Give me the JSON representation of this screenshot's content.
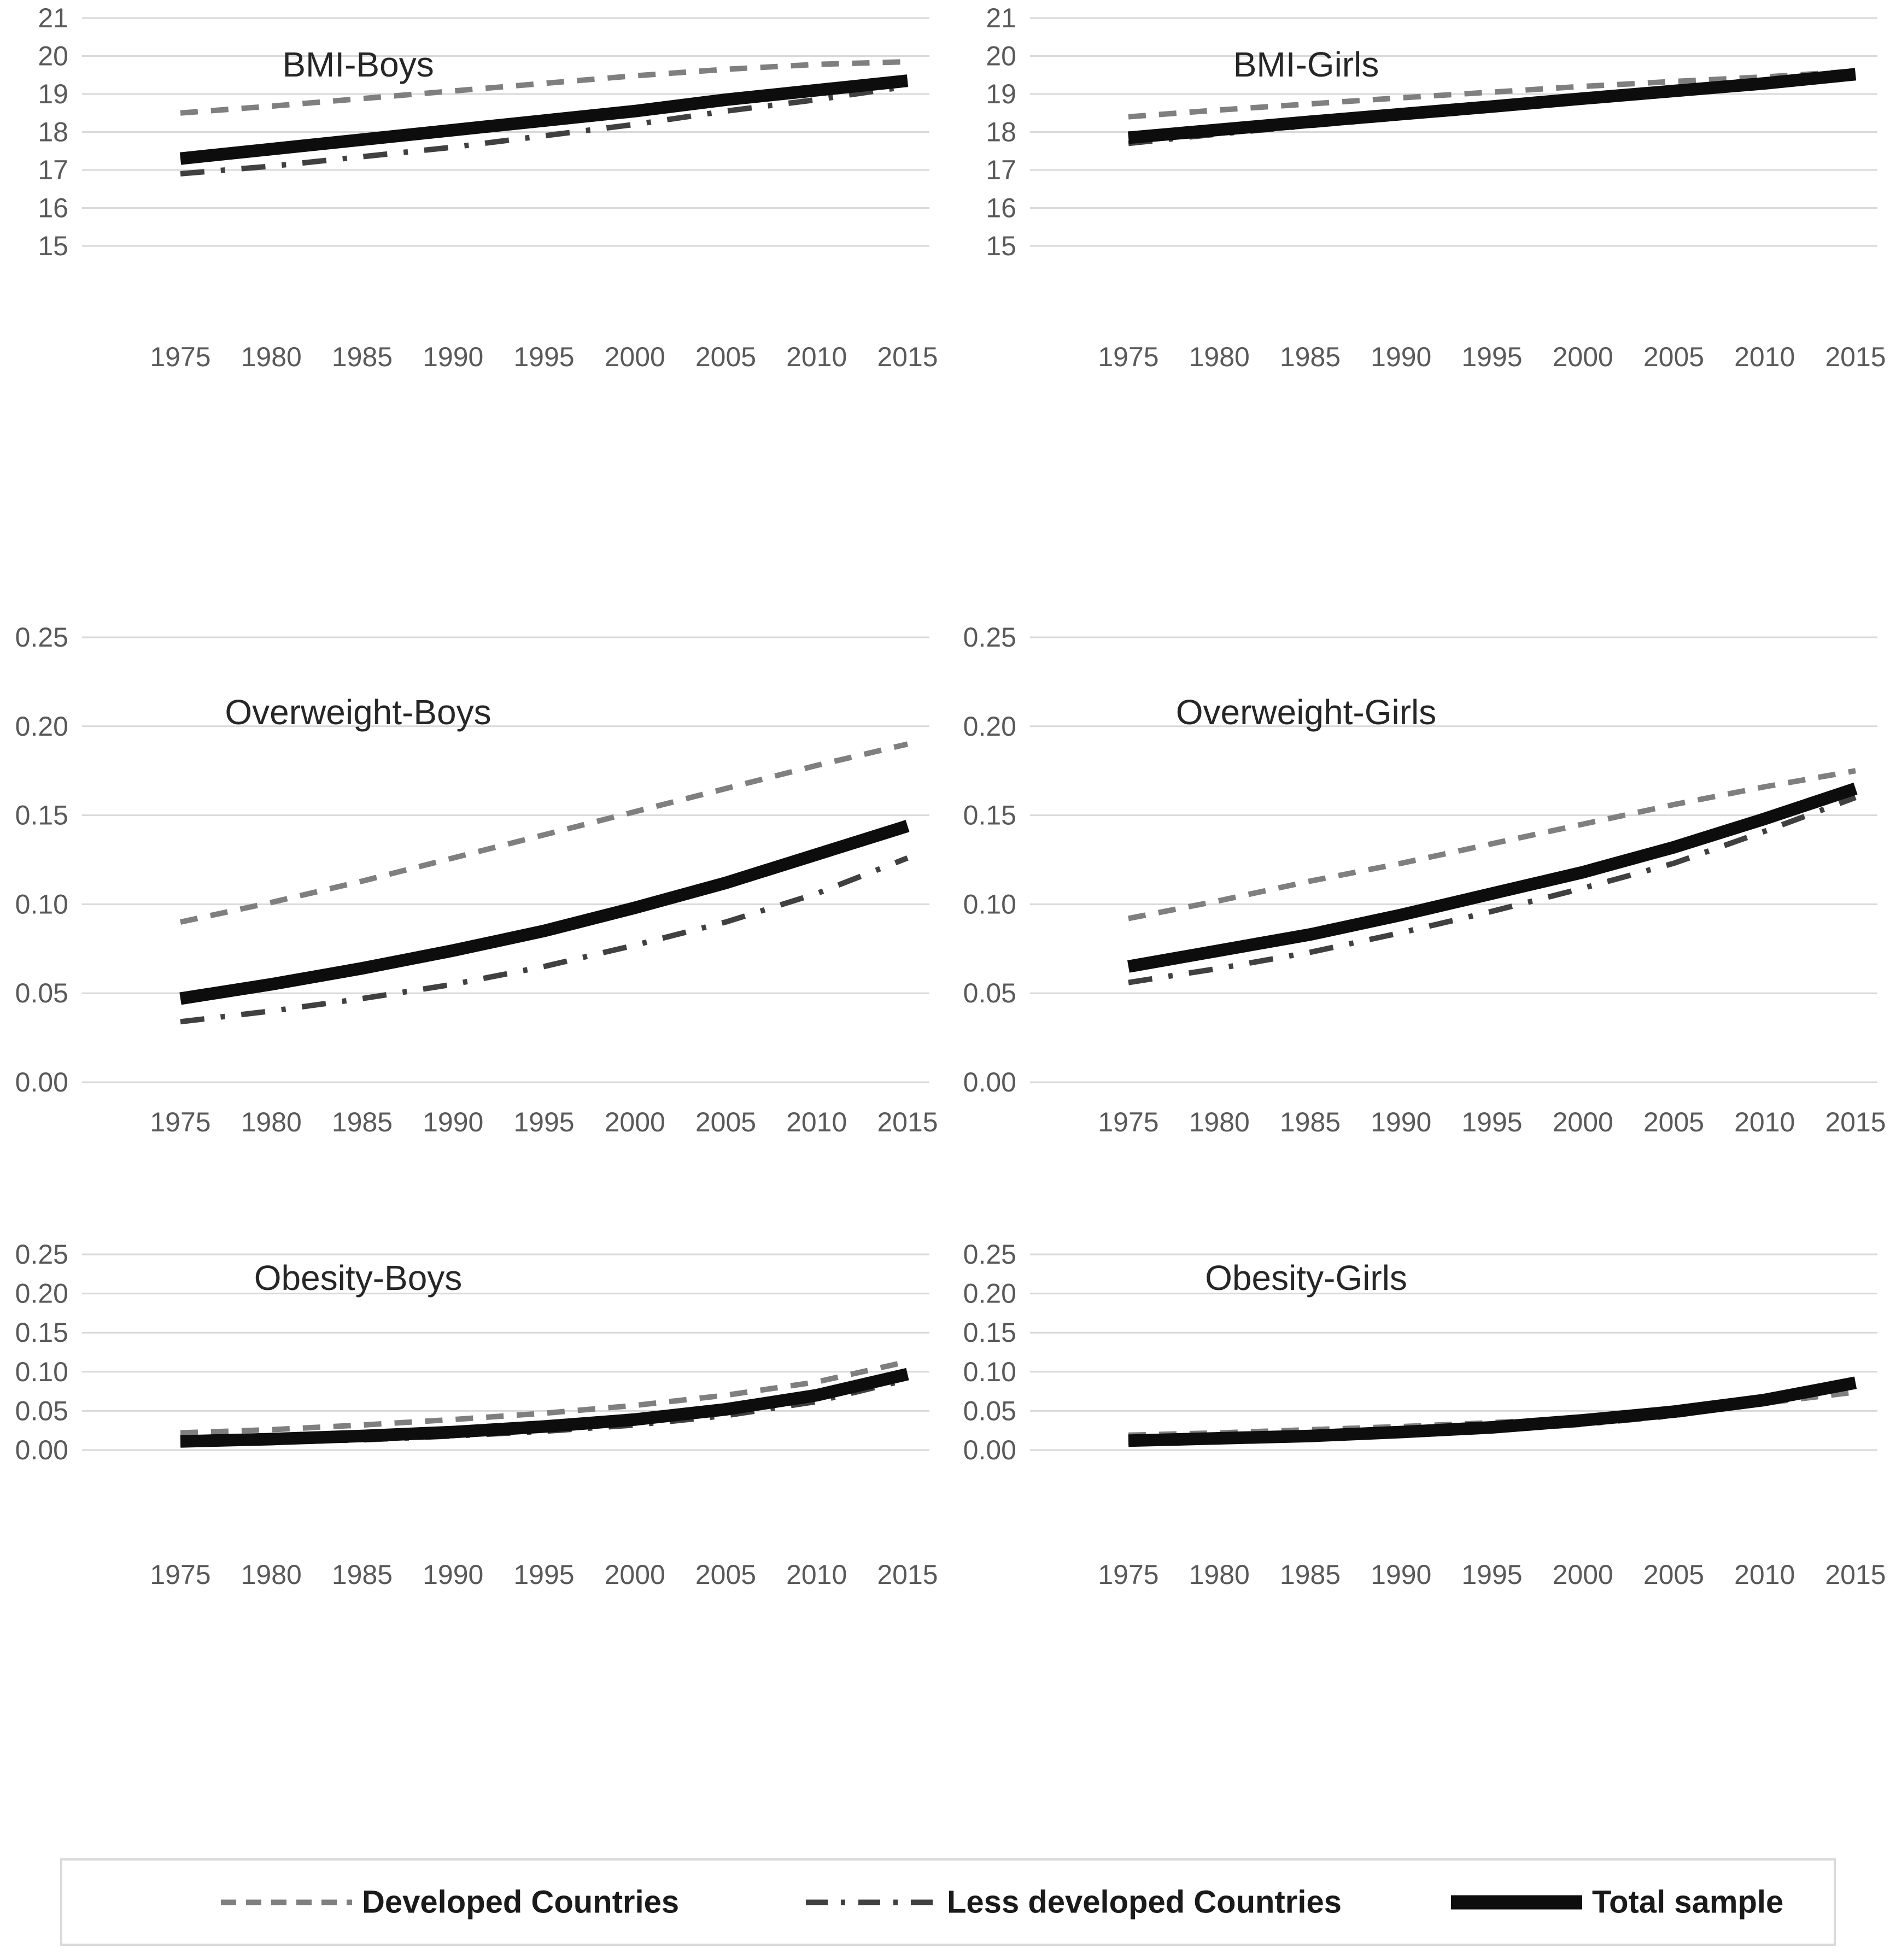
{
  "colors": {
    "background": "#FFFFFF",
    "gridline": "#D9D9D9",
    "tick_text": "#595959",
    "title_text": "#262626",
    "legend_border": "#D9D9D9",
    "legend_text": "#1A1A1A",
    "developed_line": "#7F7F7F",
    "less_developed_line": "#404040",
    "total_line": "#0D0D0D"
  },
  "legend": {
    "items": [
      {
        "id": "developed",
        "label": "Developed Countries",
        "color": "#7F7F7F",
        "line_style": "dashed"
      },
      {
        "id": "less_developed",
        "label": "Less developed Countries",
        "color": "#404040",
        "line_style": "dash-dot"
      },
      {
        "id": "total",
        "label": "Total sample",
        "color": "#0D0D0D",
        "line_style": "solid"
      }
    ]
  },
  "chart_data": [
    {
      "type": "line",
      "title": "BMI-Boys",
      "x": [
        "1975",
        "1980",
        "1985",
        "1990",
        "1995",
        "2000",
        "2005",
        "2010",
        "2015"
      ],
      "ylim": [
        15,
        21
      ],
      "ytick_values": [
        15,
        16,
        17,
        18,
        19,
        20,
        21
      ],
      "ytick_labels": [
        "15",
        "16",
        "17",
        "18",
        "19",
        "20",
        "21"
      ],
      "grid": true,
      "series": [
        {
          "id": "developed",
          "name": "Developed Countries",
          "values": [
            18.5,
            18.68,
            18.88,
            19.08,
            19.28,
            19.48,
            19.65,
            19.78,
            19.85
          ]
        },
        {
          "id": "less_developed",
          "name": "Less developed Countries",
          "values": [
            16.9,
            17.1,
            17.35,
            17.6,
            17.9,
            18.2,
            18.55,
            18.85,
            19.2
          ]
        },
        {
          "id": "total",
          "name": "Total sample",
          "values": [
            17.3,
            17.55,
            17.8,
            18.05,
            18.3,
            18.55,
            18.85,
            19.1,
            19.35
          ]
        }
      ]
    },
    {
      "type": "line",
      "title": "BMI-Girls",
      "x": [
        "1975",
        "1980",
        "1985",
        "1990",
        "1995",
        "2000",
        "2005",
        "2010",
        "2015"
      ],
      "ylim": [
        15,
        21
      ],
      "ytick_values": [
        15,
        16,
        17,
        18,
        19,
        20,
        21
      ],
      "ytick_labels": [
        "15",
        "16",
        "17",
        "18",
        "19",
        "20",
        "21"
      ],
      "grid": true,
      "series": [
        {
          "id": "developed",
          "name": "Developed Countries",
          "values": [
            18.4,
            18.58,
            18.74,
            18.9,
            19.05,
            19.2,
            19.33,
            19.45,
            19.6
          ]
        },
        {
          "id": "less_developed",
          "name": "Less developed Countries",
          "values": [
            17.7,
            17.95,
            18.17,
            18.38,
            18.6,
            18.82,
            19.03,
            19.25,
            19.47
          ]
        },
        {
          "id": "total",
          "name": "Total sample",
          "values": [
            17.85,
            18.06,
            18.27,
            18.47,
            18.67,
            18.88,
            19.08,
            19.28,
            19.52
          ]
        }
      ]
    },
    {
      "type": "line",
      "title": "Overweight-Boys",
      "x": [
        "1975",
        "1980",
        "1985",
        "1990",
        "1995",
        "2000",
        "2005",
        "2010",
        "2015"
      ],
      "ylim": [
        0,
        0.25
      ],
      "ytick_values": [
        0,
        0.05,
        0.1,
        0.15,
        0.2,
        0.25
      ],
      "ytick_labels": [
        "0.00",
        "0.05",
        "0.10",
        "0.15",
        "0.20",
        "0.25"
      ],
      "grid": true,
      "series": [
        {
          "id": "developed",
          "name": "Developed Countries",
          "values": [
            0.09,
            0.101,
            0.113,
            0.126,
            0.139,
            0.152,
            0.165,
            0.178,
            0.19
          ]
        },
        {
          "id": "less_developed",
          "name": "Less developed Countries",
          "values": [
            0.034,
            0.04,
            0.047,
            0.055,
            0.065,
            0.077,
            0.09,
            0.106,
            0.126
          ]
        },
        {
          "id": "total",
          "name": "Total sample",
          "values": [
            0.047,
            0.055,
            0.064,
            0.074,
            0.085,
            0.098,
            0.112,
            0.128,
            0.144
          ]
        }
      ]
    },
    {
      "type": "line",
      "title": "Overweight-Girls",
      "x": [
        "1975",
        "1980",
        "1985",
        "1990",
        "1995",
        "2000",
        "2005",
        "2010",
        "2015"
      ],
      "ylim": [
        0,
        0.25
      ],
      "ytick_values": [
        0,
        0.05,
        0.1,
        0.15,
        0.2,
        0.25
      ],
      "ytick_labels": [
        "0.00",
        "0.05",
        "0.10",
        "0.15",
        "0.20",
        "0.25"
      ],
      "grid": true,
      "series": [
        {
          "id": "developed",
          "name": "Developed Countries",
          "values": [
            0.092,
            0.102,
            0.113,
            0.123,
            0.134,
            0.145,
            0.156,
            0.166,
            0.175
          ]
        },
        {
          "id": "less_developed",
          "name": "Less developed Countries",
          "values": [
            0.056,
            0.064,
            0.073,
            0.084,
            0.096,
            0.109,
            0.123,
            0.141,
            0.16
          ]
        },
        {
          "id": "total",
          "name": "Total sample",
          "values": [
            0.065,
            0.074,
            0.083,
            0.094,
            0.106,
            0.118,
            0.132,
            0.148,
            0.165
          ]
        }
      ]
    },
    {
      "type": "line",
      "title": "Obesity-Boys",
      "x": [
        "1975",
        "1980",
        "1985",
        "1990",
        "1995",
        "2000",
        "2005",
        "2010",
        "2015"
      ],
      "ylim": [
        0,
        0.25
      ],
      "ytick_values": [
        0,
        0.05,
        0.1,
        0.15,
        0.2,
        0.25
      ],
      "ytick_labels": [
        "0.00",
        "0.05",
        "0.10",
        "0.15",
        "0.20",
        "0.25"
      ],
      "grid": true,
      "series": [
        {
          "id": "developed",
          "name": "Developed Countries",
          "values": [
            0.022,
            0.026,
            0.032,
            0.039,
            0.047,
            0.057,
            0.07,
            0.087,
            0.113
          ]
        },
        {
          "id": "less_developed",
          "name": "Less developed Countries",
          "values": [
            0.008,
            0.01,
            0.013,
            0.018,
            0.024,
            0.032,
            0.044,
            0.062,
            0.09
          ]
        },
        {
          "id": "total",
          "name": "Total sample",
          "values": [
            0.011,
            0.014,
            0.018,
            0.023,
            0.03,
            0.039,
            0.052,
            0.07,
            0.097
          ]
        }
      ]
    },
    {
      "type": "line",
      "title": "Obesity-Girls",
      "x": [
        "1975",
        "1980",
        "1985",
        "1990",
        "1995",
        "2000",
        "2005",
        "2010",
        "2015"
      ],
      "ylim": [
        0,
        0.25
      ],
      "ytick_values": [
        0,
        0.05,
        0.1,
        0.15,
        0.2,
        0.25
      ],
      "ytick_labels": [
        "0.00",
        "0.05",
        "0.10",
        "0.15",
        "0.20",
        "0.25"
      ],
      "grid": true,
      "series": [
        {
          "id": "developed",
          "name": "Developed Countries",
          "values": [
            0.019,
            0.022,
            0.026,
            0.03,
            0.035,
            0.041,
            0.049,
            0.06,
            0.074
          ]
        },
        {
          "id": "less_developed",
          "name": "Less developed Countries",
          "values": [
            0.01,
            0.012,
            0.015,
            0.019,
            0.025,
            0.033,
            0.044,
            0.061,
            0.082
          ]
        },
        {
          "id": "total",
          "name": "Total sample",
          "values": [
            0.012,
            0.015,
            0.018,
            0.023,
            0.029,
            0.038,
            0.049,
            0.064,
            0.086
          ]
        }
      ]
    }
  ]
}
